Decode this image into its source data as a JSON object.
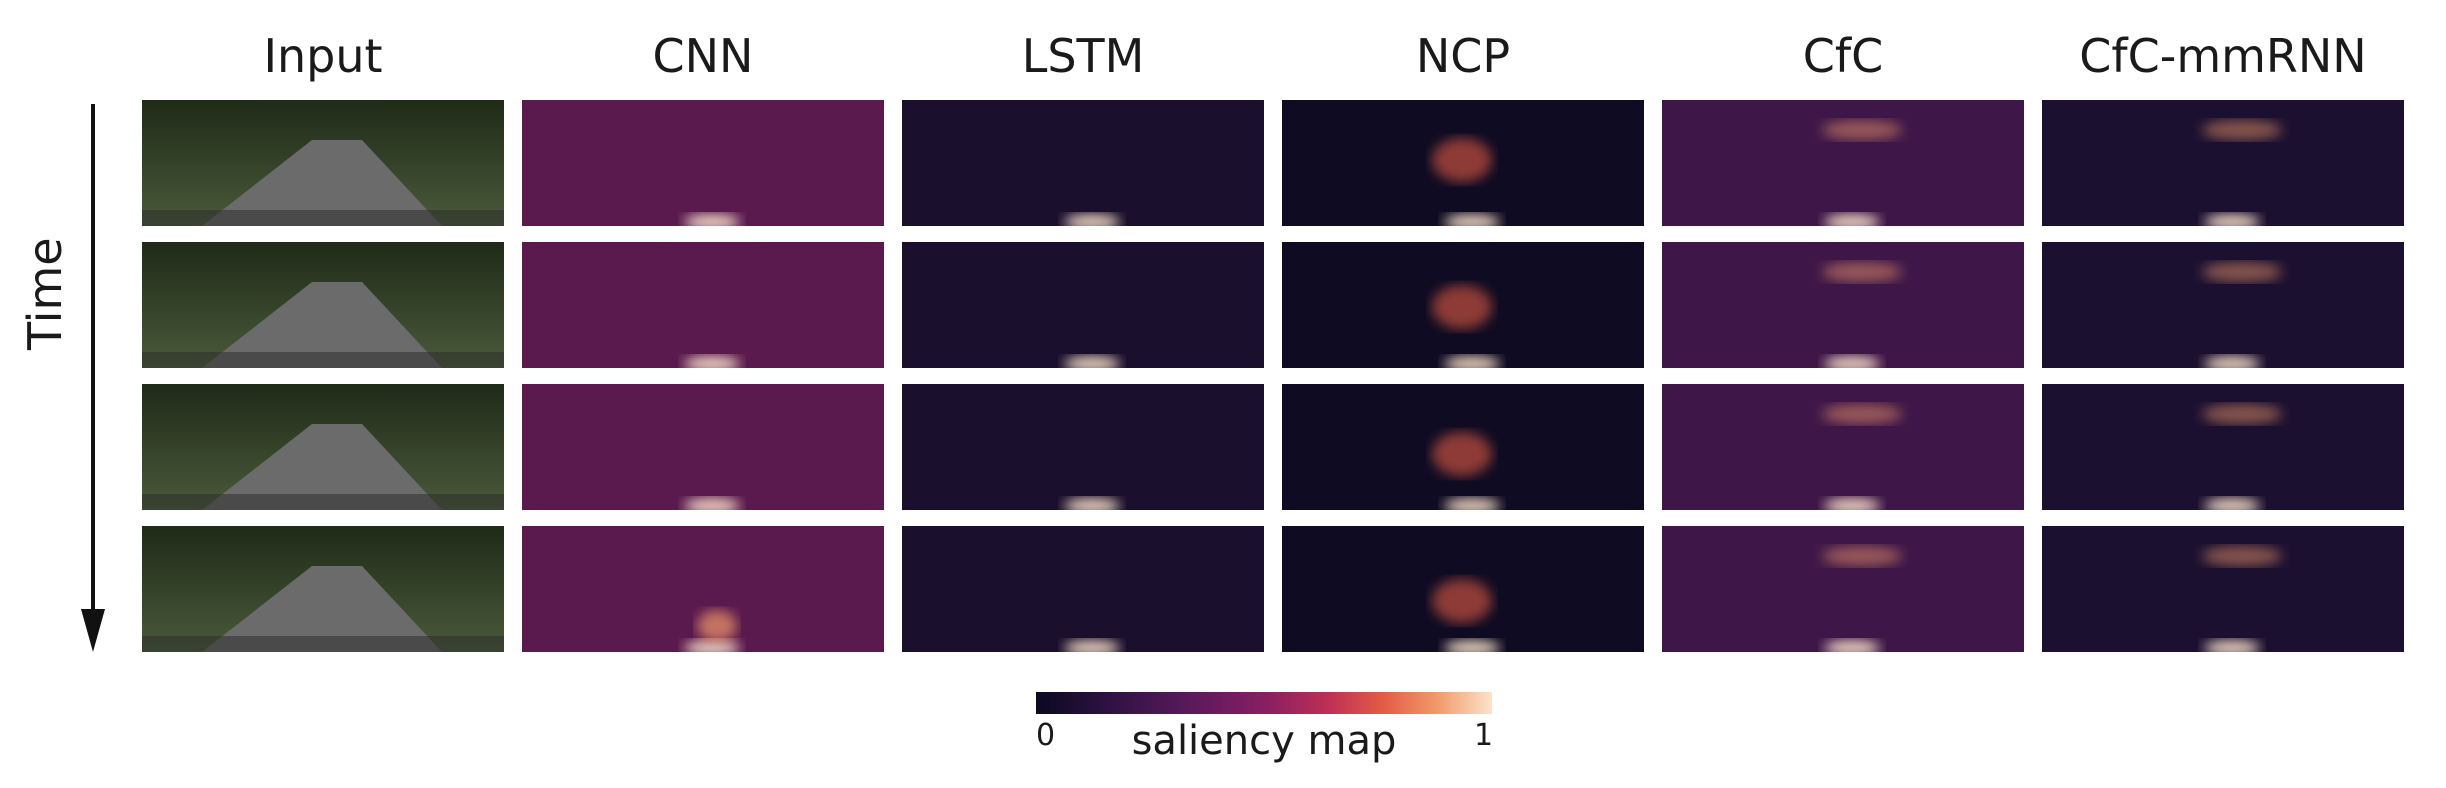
{
  "columns": [
    "Input",
    "CNN",
    "LSTM",
    "NCP",
    "CfC",
    "CfC-mmRNN"
  ],
  "row_axis": {
    "label": "Time"
  },
  "colorbar": {
    "min_label": "0",
    "max_label": "1",
    "title": "saliency map",
    "colors": [
      "#0b0920",
      "#55195a",
      "#be2f55",
      "#f19a6a",
      "#fbe3cc"
    ]
  },
  "panel_backgrounds": {
    "Input": "#3a4a30",
    "CNN": "#5a1a4e",
    "LSTM": "#1a0f2c",
    "NCP": "#0f0b22",
    "CfC": "#3e1748",
    "CfC-mmRNN": "#1c1030"
  },
  "rows": 4
}
